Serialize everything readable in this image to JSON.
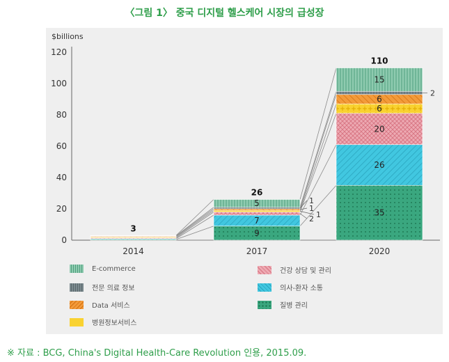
{
  "title": "〈그림 1〉 중국 디지털 헬스케어 시장의 급성장",
  "source": "※ 자료 : BCG, China's Digital Health-Care Revolution 인용, 2015.09.",
  "chart_data": {
    "type": "bar",
    "stacked": true,
    "ylabel": "$billions",
    "ylim": [
      0,
      120
    ],
    "yticks": [
      0,
      20,
      40,
      60,
      80,
      100,
      120
    ],
    "categories": [
      "2014",
      "2017",
      "2020"
    ],
    "totals": [
      3,
      26,
      110
    ],
    "series": [
      {
        "name": "질병 관리",
        "values": [
          0.5,
          9,
          35
        ],
        "labels": [
          "",
          "9",
          "35"
        ],
        "color": "#3aa77f",
        "pattern": "dots"
      },
      {
        "name": "의사-환자 소통",
        "values": [
          0.5,
          7,
          26
        ],
        "labels": [
          "",
          "7",
          "26"
        ],
        "color": "#41c7e0",
        "pattern": "diagonal"
      },
      {
        "name": "건강 상담 및 관리",
        "values": [
          0.5,
          2,
          20
        ],
        "labels": [
          "",
          "2",
          "20"
        ],
        "color": "#e8a0aa",
        "pattern": "crosshatch"
      },
      {
        "name": "병원정보서비스",
        "values": [
          0.5,
          1,
          6
        ],
        "labels": [
          "",
          "1",
          "6"
        ],
        "color": "#f9d231",
        "pattern": "plus"
      },
      {
        "name": "Data 서비스",
        "values": [
          0.5,
          1,
          6
        ],
        "labels": [
          "",
          "1",
          "6"
        ],
        "color": "#f39b3a",
        "pattern": "diagonal"
      },
      {
        "name": "전문 의료 정보",
        "values": [
          0.3,
          1,
          2
        ],
        "labels": [
          "",
          "1",
          "2"
        ],
        "color": "#7b8a8f",
        "pattern": "vlines"
      },
      {
        "name": "E-commerce",
        "values": [
          0.2,
          5,
          15
        ],
        "labels": [
          "",
          "5",
          "15"
        ],
        "color": "#86c4a8",
        "pattern": "vlines"
      }
    ],
    "legend": {
      "placement": "bottom",
      "order": [
        "E-commerce",
        "건강 상담 및 관리",
        "전문 의료 정보",
        "의사-환자 소통",
        "Data 서비스",
        "질병 관리",
        "병원정보서비스"
      ]
    },
    "grid": false
  }
}
